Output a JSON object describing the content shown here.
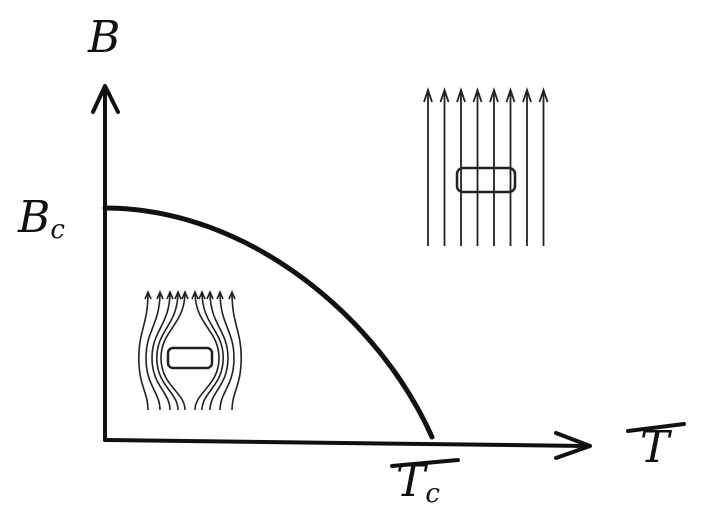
{
  "labels": {
    "y_axis": "B",
    "x_axis": "T",
    "critical_field": {
      "symbol": "B",
      "subscript": "c"
    },
    "critical_temperature": {
      "symbol": "T",
      "subscript": "c"
    }
  }
}
